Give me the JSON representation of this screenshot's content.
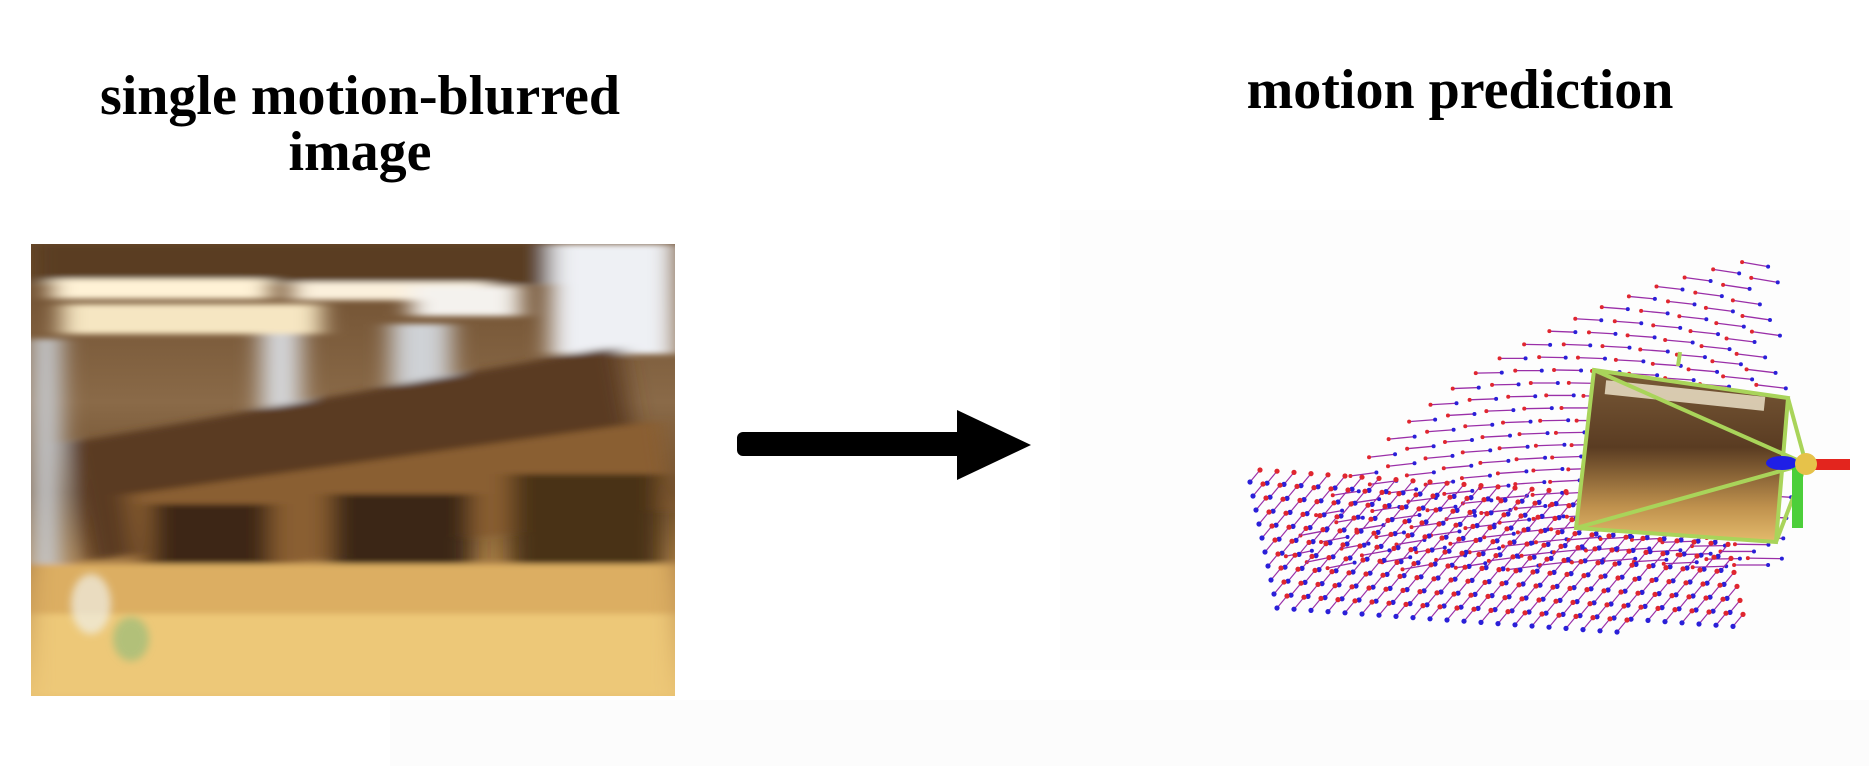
{
  "titles": {
    "left_line1": "single motion-blurred",
    "left_line2": "image",
    "right": "motion prediction"
  },
  "colors": {
    "arrow": "#000000",
    "flow_start": "#e0262f",
    "flow_end": "#2a1fd8",
    "flow_line": "#9a2fa8",
    "camera_frame": "#a9d45a",
    "axis_x": "#e3251e",
    "axis_y": "#4ccf3a",
    "axis_z": "#1f1fe6",
    "camera_center": "#e6c24a"
  },
  "icons": {
    "arrow": "right-arrow-icon",
    "camera": "camera-frustum-icon"
  }
}
